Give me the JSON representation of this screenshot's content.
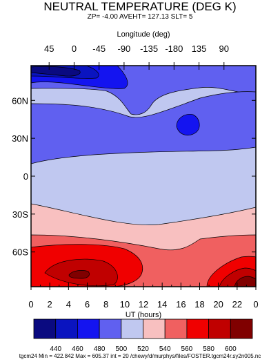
{
  "chart_data": {
    "type": "contour",
    "title": "NEUTRAL TEMPERATURE (DEG K)",
    "subtitle": "ZP= -4.00 AVEHT= 127.13 SLT= 5",
    "top_axis_label": "Longitude (deg)",
    "top_ticks": [
      "45",
      "0",
      "-45",
      "-90",
      "-135",
      "-180",
      "135",
      "90"
    ],
    "xlabel": "UT (hours)",
    "x_ticks": [
      "0",
      "2",
      "4",
      "6",
      "8",
      "10",
      "12",
      "14",
      "16",
      "18",
      "20",
      "22",
      "0"
    ],
    "xlim": [
      0,
      24
    ],
    "y_ticks": [
      "60N",
      "30N",
      "0",
      "30S",
      "60S"
    ],
    "ylim": [
      -87.5,
      87.5
    ],
    "levels": [
      440,
      460,
      480,
      500,
      520,
      540,
      560,
      580,
      600
    ],
    "colorbar_labels": [
      "440",
      "460",
      "480",
      "500",
      "520",
      "540",
      "560",
      "580",
      "600"
    ],
    "colorbar_colors": [
      "#0a0a80",
      "#0a14c0",
      "#1414f0",
      "#6060f0",
      "#c0c8f0",
      "#f8c0c0",
      "#f06060",
      "#f00000",
      "#c00000",
      "#800000"
    ],
    "footer": "tgcm24 Min = 422.842  Max = 605.37  int = 20 /chewy/d/murphys/files/FOSTER.tgcm24r.sy2n005.nc"
  }
}
